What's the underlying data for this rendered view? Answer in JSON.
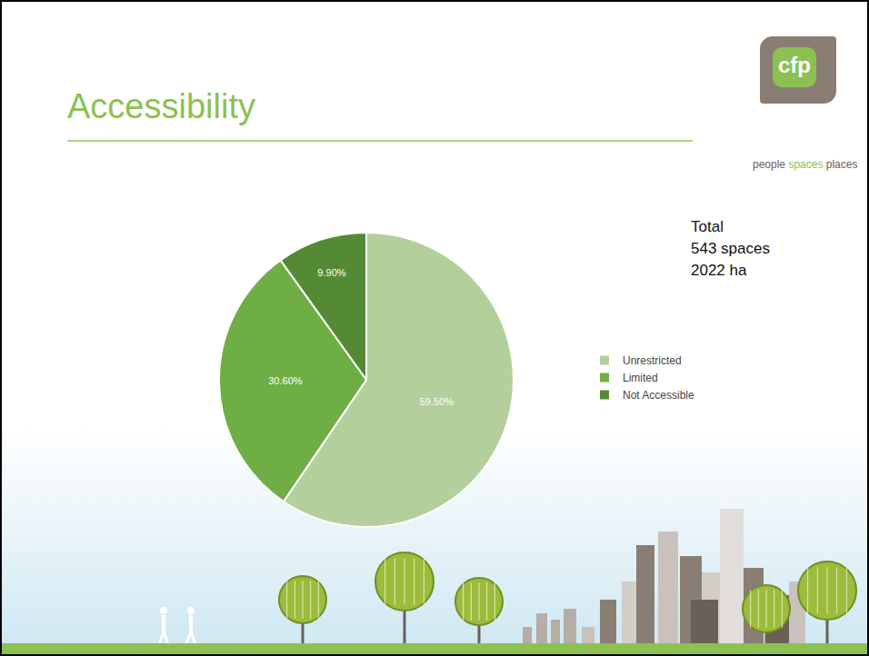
{
  "slide": {
    "title": "Accessibility",
    "logo": {
      "text": "cfp",
      "tagline": [
        "people",
        "spaces",
        "places"
      ]
    },
    "note": [
      "Total",
      "543 spaces",
      "2022 ha"
    ]
  },
  "chart_data": {
    "type": "pie",
    "categories": [
      "Unrestricted",
      "Limited",
      "Not Accessible"
    ],
    "values": [
      59.5,
      30.6,
      9.9
    ],
    "value_labels": [
      "59.50%",
      "30.60%",
      "9.90%"
    ],
    "colors": [
      "#b3d09c",
      "#6fae45",
      "#558a35"
    ],
    "data_labels": true,
    "legend": "right"
  }
}
